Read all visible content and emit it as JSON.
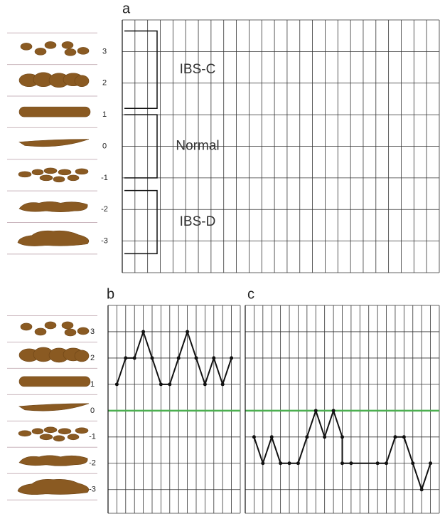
{
  "chart_data": [
    {
      "type": "line",
      "title": "a",
      "xlim": [
        0,
        25
      ],
      "ylim": [
        -4,
        4
      ],
      "yticks": [
        3,
        2,
        1,
        0,
        -1,
        -2,
        -3
      ],
      "annotations": [
        {
          "label": "IBS-C",
          "from": 3.65,
          "to": 1.2
        },
        {
          "label": "Normal",
          "from": 1.0,
          "to": -1.0
        },
        {
          "label": "IBS-D",
          "from": -1.4,
          "to": -3.4
        }
      ]
    },
    {
      "type": "line",
      "title": "b",
      "x": [
        1,
        2,
        3,
        4,
        5,
        6,
        7,
        8,
        9,
        10,
        11,
        12,
        13,
        14
      ],
      "series": [
        {
          "color": "#111111",
          "values": [
            1,
            2,
            2,
            3,
            2,
            1,
            1,
            2,
            3,
            2,
            1,
            2,
            1,
            2
          ]
        }
      ],
      "xlim": [
        0,
        15
      ],
      "ylim": [
        -3.9,
        4
      ],
      "yticks": [
        3,
        2,
        1,
        0,
        -1,
        -2,
        -3
      ],
      "zero_line_color": "#4caf50"
    },
    {
      "type": "line",
      "title": "c",
      "x": [
        1,
        2,
        3,
        4,
        5,
        6,
        7,
        8,
        9,
        10,
        11,
        11,
        12,
        15,
        16,
        17,
        18,
        19,
        20,
        21
      ],
      "series": [
        {
          "color": "#111111",
          "values": [
            -1,
            -2,
            -1,
            -2,
            -2,
            -2,
            -1,
            0,
            -1,
            0,
            -1,
            -2,
            -2,
            -2,
            -2,
            -1,
            -1,
            -2,
            -3,
            -2
          ]
        }
      ],
      "xlim": [
        0,
        22
      ],
      "ylim": [
        -3.9,
        4
      ],
      "zero_line_color": "#4caf50"
    }
  ]
}
